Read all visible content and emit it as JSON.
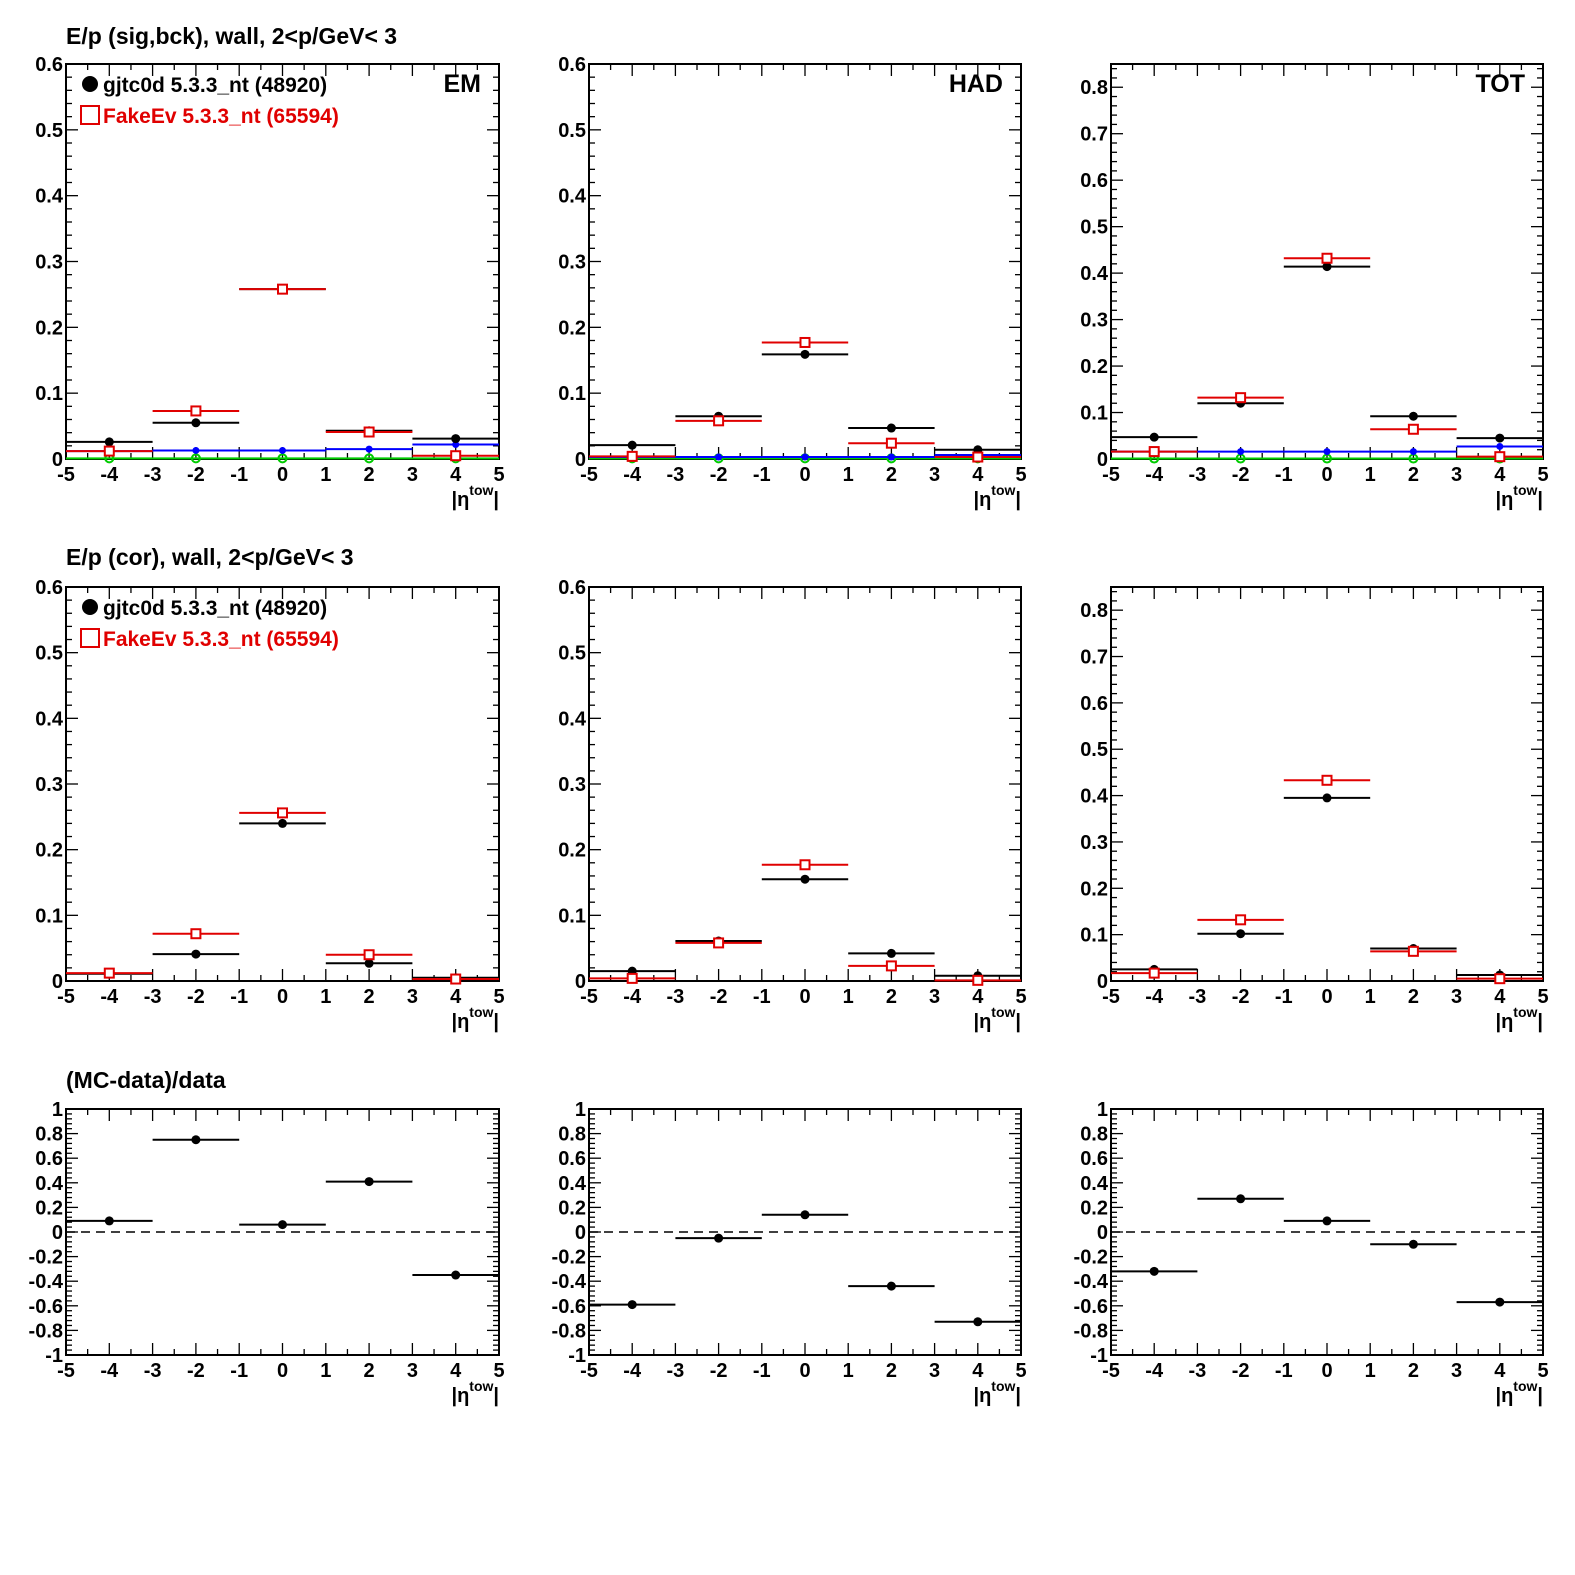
{
  "row_titles": [
    "E/p (sig,bck), wall,  2<p/GeV< 3",
    "E/p (cor), wall,  2<p/GeV< 3",
    "(MC-data)/data"
  ],
  "panel_labels": [
    "EM",
    "HAD",
    "TOT"
  ],
  "xaxis": {
    "label_base": "|η",
    "label_sup": "tow",
    "label_end": "|",
    "ticks": [
      "-5",
      "-4",
      "-3",
      "-2",
      "-1",
      "0",
      "1",
      "2",
      "3",
      "4",
      "5"
    ]
  },
  "legend": [
    {
      "label": "gjtc0d 5.3.3_nt (48920)",
      "color": "#000000",
      "marker": "filled-circle"
    },
    {
      "label": "FakeEv 5.3.3_nt (65594)",
      "color": "#e00000",
      "marker": "open-square"
    }
  ],
  "colors": {
    "data": "#000000",
    "mc": "#e00000",
    "bck_data": "#0000ff",
    "bck_mc": "#00cc00"
  },
  "chart_data": [
    {
      "type": "scatter",
      "row": 0,
      "col": 0,
      "panel": "EM",
      "xlim": [
        -5,
        5
      ],
      "ylim": [
        0,
        0.6
      ],
      "yticks": [
        "0",
        "0.1",
        "0.2",
        "0.3",
        "0.4",
        "0.5",
        "0.6"
      ],
      "x": [
        -4,
        -2,
        0,
        2,
        4
      ],
      "series": [
        {
          "name": "gjtc0d 5.3.3_nt (48920)",
          "values": [
            0.026,
            0.055,
            0.258,
            0.043,
            0.031
          ]
        },
        {
          "name": "FakeEv 5.3.3_nt (65594)",
          "values": [
            0.012,
            0.073,
            0.258,
            0.041,
            0.005
          ]
        },
        {
          "values": [
            0.012,
            0.013,
            0.013,
            0.015,
            0.022
          ]
        },
        {
          "values": [
            0.001,
            0.001,
            0.001,
            0.001,
            0.001
          ]
        }
      ]
    },
    {
      "type": "scatter",
      "row": 0,
      "col": 1,
      "panel": "HAD",
      "xlim": [
        -5,
        5
      ],
      "ylim": [
        0,
        0.6
      ],
      "yticks": [
        "0",
        "0.1",
        "0.2",
        "0.3",
        "0.4",
        "0.5",
        "0.6"
      ],
      "x": [
        -4,
        -2,
        0,
        2,
        4
      ],
      "series": [
        {
          "name": "gjtc0d 5.3.3_nt (48920)",
          "values": [
            0.021,
            0.065,
            0.159,
            0.047,
            0.014
          ]
        },
        {
          "name": "FakeEv 5.3.3_nt (65594)",
          "values": [
            0.004,
            0.058,
            0.177,
            0.024,
            0.003
          ]
        },
        {
          "values": [
            0.003,
            0.003,
            0.003,
            0.003,
            0.006
          ]
        },
        {
          "values": [
            0.001,
            0.001,
            0.001,
            0.001,
            0.001
          ]
        }
      ]
    },
    {
      "type": "scatter",
      "row": 0,
      "col": 2,
      "panel": "TOT",
      "xlim": [
        -5,
        5
      ],
      "ylim": [
        0,
        0.85
      ],
      "yticks": [
        "0",
        "0.1",
        "0.2",
        "0.3",
        "0.4",
        "0.5",
        "0.6",
        "0.7",
        "0.8"
      ],
      "x": [
        -4,
        -2,
        0,
        2,
        4
      ],
      "series": [
        {
          "name": "gjtc0d 5.3.3_nt (48920)",
          "values": [
            0.047,
            0.12,
            0.414,
            0.092,
            0.045
          ]
        },
        {
          "name": "FakeEv 5.3.3_nt (65594)",
          "values": [
            0.016,
            0.132,
            0.432,
            0.064,
            0.005
          ]
        },
        {
          "values": [
            0.016,
            0.016,
            0.016,
            0.016,
            0.027
          ]
        },
        {
          "values": [
            0.001,
            0.001,
            0.001,
            0.001,
            0.001
          ]
        }
      ]
    },
    {
      "type": "scatter",
      "row": 1,
      "col": 0,
      "xlim": [
        -5,
        5
      ],
      "ylim": [
        0,
        0.6
      ],
      "yticks": [
        "0",
        "0.1",
        "0.2",
        "0.3",
        "0.4",
        "0.5",
        "0.6"
      ],
      "x": [
        -4,
        -2,
        0,
        2,
        4
      ],
      "series": [
        {
          "name": "gjtc0d 5.3.3_nt (48920)",
          "values": [
            0.011,
            0.041,
            0.24,
            0.027,
            0.005
          ]
        },
        {
          "name": "FakeEv 5.3.3_nt (65594)",
          "values": [
            0.012,
            0.072,
            0.256,
            0.04,
            0.003
          ]
        }
      ]
    },
    {
      "type": "scatter",
      "row": 1,
      "col": 1,
      "xlim": [
        -5,
        5
      ],
      "ylim": [
        0,
        0.6
      ],
      "yticks": [
        "0",
        "0.1",
        "0.2",
        "0.3",
        "0.4",
        "0.5",
        "0.6"
      ],
      "x": [
        -4,
        -2,
        0,
        2,
        4
      ],
      "series": [
        {
          "name": "gjtc0d 5.3.3_nt (48920)",
          "values": [
            0.015,
            0.061,
            0.155,
            0.042,
            0.008
          ]
        },
        {
          "name": "FakeEv 5.3.3_nt (65594)",
          "values": [
            0.004,
            0.058,
            0.177,
            0.023,
            0.001
          ]
        }
      ]
    },
    {
      "type": "scatter",
      "row": 1,
      "col": 2,
      "xlim": [
        -5,
        5
      ],
      "ylim": [
        0,
        0.85
      ],
      "yticks": [
        "0",
        "0.1",
        "0.2",
        "0.3",
        "0.4",
        "0.5",
        "0.6",
        "0.7",
        "0.8"
      ],
      "x": [
        -4,
        -2,
        0,
        2,
        4
      ],
      "series": [
        {
          "name": "gjtc0d 5.3.3_nt (48920)",
          "values": [
            0.025,
            0.102,
            0.395,
            0.07,
            0.013
          ]
        },
        {
          "name": "FakeEv 5.3.3_nt (65594)",
          "values": [
            0.017,
            0.132,
            0.433,
            0.064,
            0.005
          ]
        }
      ]
    },
    {
      "type": "scatter",
      "row": 2,
      "col": 0,
      "xlim": [
        -5,
        5
      ],
      "ylim": [
        -1,
        1
      ],
      "yticks": [
        "-1",
        "-0.8",
        "-0.6",
        "-0.4",
        "-0.2",
        "0",
        "0.2",
        "0.4",
        "0.6",
        "0.8",
        "1"
      ],
      "x": [
        -4,
        -2,
        0,
        2,
        4
      ],
      "series": [
        {
          "values": [
            0.09,
            0.75,
            0.06,
            0.41,
            -0.35
          ]
        }
      ]
    },
    {
      "type": "scatter",
      "row": 2,
      "col": 1,
      "xlim": [
        -5,
        5
      ],
      "ylim": [
        -1,
        1
      ],
      "yticks": [
        "-1",
        "-0.8",
        "-0.6",
        "-0.4",
        "-0.2",
        "0",
        "0.2",
        "0.4",
        "0.6",
        "0.8",
        "1"
      ],
      "x": [
        -4,
        -2,
        0,
        2,
        4
      ],
      "series": [
        {
          "values": [
            -0.59,
            -0.05,
            0.14,
            -0.44,
            -0.73
          ]
        }
      ]
    },
    {
      "type": "scatter",
      "row": 2,
      "col": 2,
      "xlim": [
        -5,
        5
      ],
      "ylim": [
        -1,
        1
      ],
      "yticks": [
        "-1",
        "-0.8",
        "-0.6",
        "-0.4",
        "-0.2",
        "0",
        "0.2",
        "0.4",
        "0.6",
        "0.8",
        "1"
      ],
      "x": [
        -4,
        -2,
        0,
        2,
        4
      ],
      "series": [
        {
          "values": [
            -0.32,
            0.27,
            0.09,
            -0.1,
            -0.57
          ]
        }
      ]
    }
  ]
}
